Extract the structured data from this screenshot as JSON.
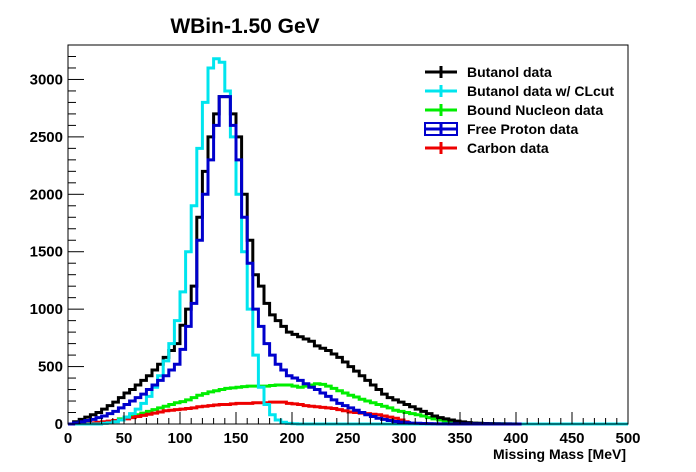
{
  "chart_data": {
    "type": "line",
    "title": "WBin-1.50 GeV",
    "xlabel": "Missing Mass [MeV]",
    "ylabel": "",
    "xlim": [
      0,
      500
    ],
    "ylim": [
      0,
      3300
    ],
    "x_ticks": [
      "0",
      "50",
      "100",
      "150",
      "200",
      "250",
      "300",
      "350",
      "400",
      "450",
      "500"
    ],
    "y_ticks": [
      "0",
      "500",
      "1000",
      "1500",
      "2000",
      "2500",
      "3000"
    ],
    "bin_width": 5,
    "grid": false,
    "legend_position": "top-right",
    "series": [
      {
        "name": "Butanol data",
        "color": "#000000",
        "x": [
          0,
          5,
          10,
          15,
          20,
          25,
          30,
          35,
          40,
          45,
          50,
          55,
          60,
          65,
          70,
          75,
          80,
          85,
          90,
          95,
          100,
          105,
          110,
          115,
          120,
          125,
          130,
          135,
          140,
          145,
          150,
          155,
          160,
          165,
          170,
          175,
          180,
          185,
          190,
          195,
          200,
          205,
          210,
          215,
          220,
          225,
          230,
          235,
          240,
          245,
          250,
          255,
          260,
          265,
          270,
          275,
          280,
          285,
          290,
          295,
          300,
          305,
          310,
          315,
          320,
          325,
          330,
          335,
          340,
          345,
          350,
          355,
          360,
          365,
          370,
          375,
          380,
          385,
          390,
          395,
          400
        ],
        "values": [
          0,
          20,
          40,
          60,
          80,
          100,
          130,
          160,
          190,
          230,
          270,
          300,
          340,
          380,
          420,
          470,
          520,
          580,
          640,
          700,
          860,
          1000,
          1200,
          1800,
          2200,
          2500,
          2700,
          2850,
          2850,
          2700,
          2500,
          2000,
          1600,
          1300,
          1200,
          1050,
          950,
          900,
          850,
          800,
          780,
          760,
          740,
          720,
          680,
          660,
          640,
          610,
          580,
          540,
          500,
          460,
          420,
          380,
          340,
          300,
          260,
          230,
          210,
          190,
          170,
          150,
          130,
          110,
          90,
          70,
          55,
          45,
          35,
          25,
          18,
          12,
          8,
          6,
          4,
          3,
          2,
          1,
          1,
          0,
          0
        ]
      },
      {
        "name": "Butanol data w/ CLcut",
        "color": "#00e5ee",
        "x": [
          0,
          5,
          10,
          15,
          20,
          25,
          30,
          35,
          40,
          45,
          50,
          55,
          60,
          65,
          70,
          75,
          80,
          85,
          90,
          95,
          100,
          105,
          110,
          115,
          120,
          125,
          130,
          135,
          140,
          145,
          150,
          155,
          160,
          165,
          170,
          175,
          180,
          185,
          190,
          195,
          200,
          205,
          210,
          215,
          220,
          225,
          230,
          235,
          240,
          245,
          250,
          255,
          260,
          265,
          270,
          275,
          280,
          285,
          290,
          295,
          300,
          305,
          310,
          315,
          320,
          325,
          330,
          335,
          340,
          345,
          350,
          355,
          360,
          365,
          370,
          375,
          380,
          385,
          390,
          395,
          400,
          405,
          410,
          415,
          420,
          425,
          430,
          435,
          440,
          445,
          450,
          455,
          460,
          465,
          470,
          475,
          480,
          485,
          490,
          495
        ],
        "values": [
          0,
          0,
          0,
          0,
          0,
          0,
          5,
          10,
          20,
          35,
          60,
          90,
          130,
          180,
          240,
          320,
          420,
          550,
          700,
          900,
          1150,
          1500,
          1900,
          2400,
          2800,
          3100,
          3180,
          3150,
          2900,
          2500,
          2000,
          1500,
          1000,
          600,
          320,
          170,
          80,
          35,
          15,
          5,
          2,
          0,
          0,
          0,
          0,
          0,
          0,
          0,
          0,
          0,
          0,
          0,
          0,
          0,
          0,
          0,
          0,
          0,
          0,
          0,
          0,
          0,
          0,
          0,
          0,
          0,
          0,
          0,
          0,
          0,
          0,
          0,
          0,
          0,
          0,
          0,
          0,
          0,
          0,
          0,
          0,
          0,
          0,
          0,
          0,
          0,
          0,
          0,
          0,
          0,
          0,
          0,
          0,
          0,
          0,
          0,
          0,
          0,
          0,
          0
        ]
      },
      {
        "name": "Bound Nucleon data",
        "color": "#00ee00",
        "x": [
          0,
          5,
          10,
          15,
          20,
          25,
          30,
          35,
          40,
          45,
          50,
          55,
          60,
          65,
          70,
          75,
          80,
          85,
          90,
          95,
          100,
          105,
          110,
          115,
          120,
          125,
          130,
          135,
          140,
          145,
          150,
          155,
          160,
          165,
          170,
          175,
          180,
          185,
          190,
          195,
          200,
          205,
          210,
          215,
          220,
          225,
          230,
          235,
          240,
          245,
          250,
          255,
          260,
          265,
          270,
          275,
          280,
          285,
          290,
          295,
          300,
          305,
          310,
          315,
          320,
          325,
          330,
          335,
          340,
          345,
          350,
          355,
          360,
          365,
          370,
          375,
          380,
          385,
          390,
          395,
          400
        ],
        "values": [
          0,
          0,
          0,
          2,
          5,
          10,
          15,
          20,
          30,
          45,
          60,
          70,
          80,
          95,
          110,
          125,
          140,
          155,
          170,
          185,
          195,
          210,
          230,
          250,
          265,
          280,
          290,
          300,
          310,
          315,
          320,
          325,
          330,
          330,
          330,
          330,
          335,
          340,
          340,
          340,
          330,
          320,
          330,
          340,
          350,
          345,
          330,
          310,
          290,
          270,
          250,
          235,
          215,
          200,
          185,
          170,
          155,
          140,
          120,
          110,
          100,
          90,
          80,
          70,
          55,
          45,
          35,
          25,
          20,
          15,
          10,
          8,
          6,
          5,
          4,
          3,
          2,
          2,
          1,
          1,
          0
        ]
      },
      {
        "name": "Free Proton data",
        "color": "#0000cc",
        "x": [
          0,
          5,
          10,
          15,
          20,
          25,
          30,
          35,
          40,
          45,
          50,
          55,
          60,
          65,
          70,
          75,
          80,
          85,
          90,
          95,
          100,
          105,
          110,
          115,
          120,
          125,
          130,
          135,
          140,
          145,
          150,
          155,
          160,
          165,
          170,
          175,
          180,
          185,
          190,
          195,
          200,
          205,
          210,
          215,
          220,
          225,
          230,
          235,
          240,
          245,
          250,
          255,
          260,
          265,
          270,
          275,
          280,
          285,
          290,
          295,
          300,
          305,
          310,
          315,
          320,
          325,
          330,
          335,
          340,
          345,
          350,
          355,
          360,
          365,
          370,
          375,
          380,
          385,
          390,
          395,
          400
        ],
        "values": [
          0,
          10,
          20,
          30,
          40,
          55,
          70,
          90,
          110,
          140,
          170,
          200,
          230,
          260,
          300,
          340,
          380,
          420,
          470,
          520,
          650,
          850,
          1050,
          1600,
          2000,
          2300,
          2600,
          2850,
          2850,
          2600,
          2300,
          1800,
          1400,
          1000,
          850,
          700,
          600,
          520,
          470,
          420,
          400,
          380,
          350,
          320,
          300,
          270,
          240,
          210,
          180,
          160,
          140,
          120,
          100,
          80,
          65,
          50,
          40,
          30,
          22,
          16,
          12,
          8,
          6,
          4,
          3,
          2,
          1,
          1,
          0,
          0,
          0,
          0,
          0,
          0,
          0,
          0,
          0,
          0,
          0,
          0,
          0
        ]
      },
      {
        "name": "Carbon data",
        "color": "#ee0000",
        "x": [
          0,
          5,
          10,
          15,
          20,
          25,
          30,
          35,
          40,
          45,
          50,
          55,
          60,
          65,
          70,
          75,
          80,
          85,
          90,
          95,
          100,
          105,
          110,
          115,
          120,
          125,
          130,
          135,
          140,
          145,
          150,
          155,
          160,
          165,
          170,
          175,
          180,
          185,
          190,
          195,
          200,
          205,
          210,
          215,
          220,
          225,
          230,
          235,
          240,
          245,
          250,
          255,
          260,
          265,
          270,
          275,
          280,
          285,
          290,
          295,
          300
        ],
        "values": [
          0,
          0,
          2,
          5,
          10,
          15,
          20,
          25,
          30,
          35,
          45,
          55,
          65,
          75,
          85,
          95,
          105,
          115,
          120,
          125,
          130,
          135,
          140,
          150,
          155,
          160,
          165,
          170,
          170,
          175,
          180,
          180,
          180,
          185,
          185,
          185,
          190,
          190,
          190,
          180,
          175,
          170,
          160,
          155,
          150,
          145,
          140,
          135,
          125,
          115,
          105,
          100,
          95,
          90,
          85,
          80,
          70,
          60,
          50,
          35,
          20
        ]
      }
    ]
  }
}
